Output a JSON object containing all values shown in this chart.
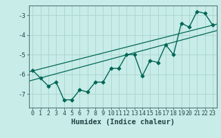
{
  "xlabel": "Humidex (Indice chaleur)",
  "background_color": "#c8ece8",
  "grid_color": "#aad4cc",
  "line_color": "#006655",
  "x_values": [
    0,
    1,
    2,
    3,
    4,
    5,
    6,
    7,
    8,
    9,
    10,
    11,
    12,
    13,
    14,
    15,
    16,
    17,
    18,
    19,
    20,
    21,
    22,
    23
  ],
  "y_values": [
    -5.8,
    -6.2,
    -6.6,
    -6.4,
    -7.3,
    -7.3,
    -6.8,
    -6.9,
    -6.4,
    -6.4,
    -5.7,
    -5.7,
    -5.0,
    -5.0,
    -6.1,
    -5.3,
    -5.4,
    -4.5,
    -5.0,
    -3.4,
    -3.6,
    -2.8,
    -2.9,
    -3.5
  ],
  "reg_line1": [
    [
      -0.5,
      -5.88
    ],
    [
      23.5,
      -3.45
    ]
  ],
  "reg_line2": [
    [
      -0.5,
      -6.35
    ],
    [
      23.5,
      -3.78
    ]
  ],
  "ylim": [
    -7.7,
    -2.5
  ],
  "xlim": [
    -0.5,
    23.5
  ],
  "yticks": [
    -7,
    -6,
    -5,
    -4,
    -3
  ],
  "xticks": [
    0,
    1,
    2,
    3,
    4,
    5,
    6,
    7,
    8,
    9,
    10,
    11,
    12,
    13,
    14,
    15,
    16,
    17,
    18,
    19,
    20,
    21,
    22,
    23
  ],
  "spine_color": "#557777",
  "tick_color": "#224444",
  "xlabel_fontsize": 7.5,
  "tick_fontsize": 6.0,
  "marker": "D",
  "markersize": 2.8,
  "linewidth": 1.0,
  "reg_linewidth": 0.9
}
